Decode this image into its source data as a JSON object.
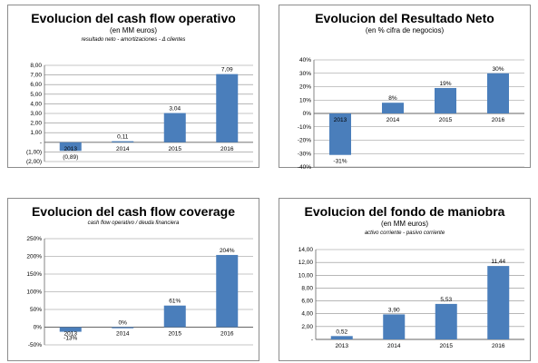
{
  "colors": {
    "bar": "#4a7ebb",
    "grid": "#8c8c8c",
    "axis": "#666666"
  },
  "chart_data": [
    {
      "type": "bar",
      "title": "Evolucion del cash flow operativo",
      "subtitle": "(en MM euros)",
      "note": "resultado neto - amortizaciones - Δ clientes",
      "categories": [
        "2013",
        "2014",
        "2015",
        "2016"
      ],
      "values": [
        -0.89,
        0.11,
        3.04,
        7.09
      ],
      "data_labels": [
        "(0,89)",
        "0,11",
        "3,04",
        "7,09"
      ],
      "y_ticks": [
        "8,00",
        "7,00",
        "6,00",
        "5,00",
        "4,00",
        "3,00",
        "2,00",
        "1,00",
        "-",
        "(1,00)",
        "(2,00)"
      ],
      "ylim": [
        -2,
        8
      ],
      "grid": true,
      "legend": "none"
    },
    {
      "type": "bar",
      "title": "Evolucion del Resultado Neto",
      "subtitle": "(en % cifra de negocios)",
      "note": "",
      "categories": [
        "2013",
        "2014",
        "2015",
        "2016"
      ],
      "values": [
        -31,
        8,
        19,
        30
      ],
      "data_labels": [
        "-31%",
        "8%",
        "19%",
        "30%"
      ],
      "y_ticks": [
        "40%",
        "30%",
        "20%",
        "10%",
        "0%",
        "-10%",
        "-20%",
        "-30%",
        "-40%"
      ],
      "ylim": [
        -40,
        40
      ],
      "grid": true,
      "legend": "none"
    },
    {
      "type": "bar",
      "title": "Evolucion del cash flow coverage",
      "subtitle": "",
      "note": "cash flow operativo / deuda financiera",
      "categories": [
        "2013",
        "2014",
        "2015",
        "2016"
      ],
      "values": [
        -13,
        0,
        61,
        204
      ],
      "data_labels": [
        "-13%",
        "0%",
        "61%",
        "204%"
      ],
      "y_ticks": [
        "250%",
        "200%",
        "150%",
        "100%",
        "50%",
        "0%",
        "-50%"
      ],
      "ylim": [
        -50,
        250
      ],
      "grid": true,
      "legend": "none"
    },
    {
      "type": "bar",
      "title": "Evolucion del fondo de maniobra",
      "subtitle": "(en MM euros)",
      "note": "activo corriente - pasivo corriente",
      "categories": [
        "2013",
        "2014",
        "2015",
        "2016"
      ],
      "values": [
        0.52,
        3.9,
        5.53,
        11.44
      ],
      "data_labels": [
        "0,52",
        "3,90",
        "5,53",
        "11,44"
      ],
      "y_ticks": [
        "14,00",
        "12,00",
        "10,00",
        "8,00",
        "6,00",
        "4,00",
        "2,00",
        "-"
      ],
      "ylim": [
        0,
        14
      ],
      "grid": true,
      "legend": "none"
    }
  ]
}
